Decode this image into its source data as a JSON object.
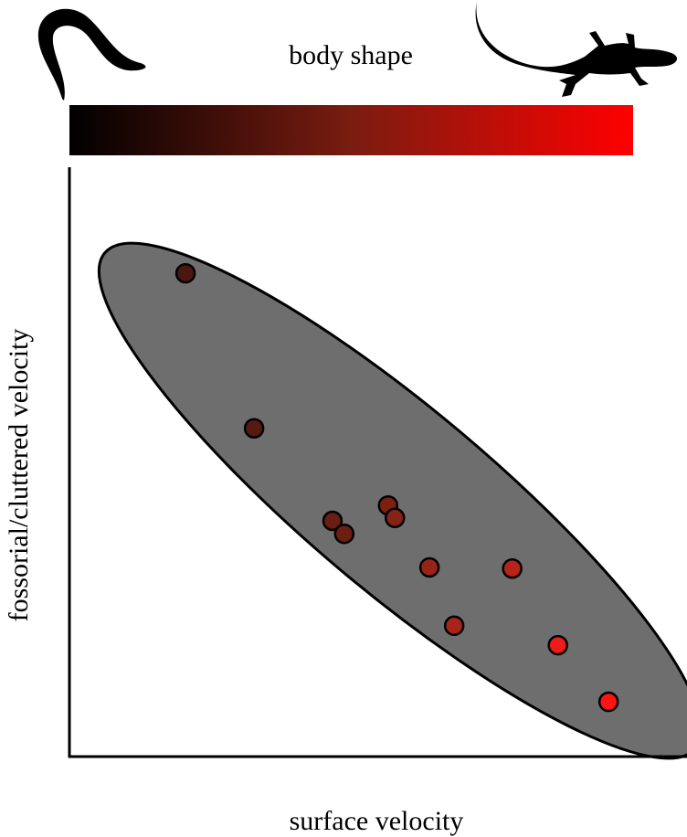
{
  "chart_data": {
    "type": "scatter",
    "title": "body shape",
    "x_label": "surface velocity",
    "y_label": "fossorial/cluttered velocity",
    "x": [
      18.8,
      29.9,
      42.6,
      44.5,
      51.6,
      52.7,
      58.3,
      71.7,
      62.3,
      79.1,
      87.3
    ],
    "values": [
      82.0,
      55.7,
      40.0,
      37.8,
      42.6,
      40.5,
      32.1,
      31.9,
      22.2,
      18.9,
      9.3
    ],
    "point_colors": [
      "#4a1810",
      "#561a10",
      "#6a1d12",
      "#6c1e12",
      "#7c2014",
      "#862216",
      "#982418",
      "#b82418",
      "#a82418",
      "#ee1c18",
      "#ff1414"
    ],
    "xlim": [
      0,
      100
    ],
    "ylim": [
      0,
      100
    ]
  }
}
